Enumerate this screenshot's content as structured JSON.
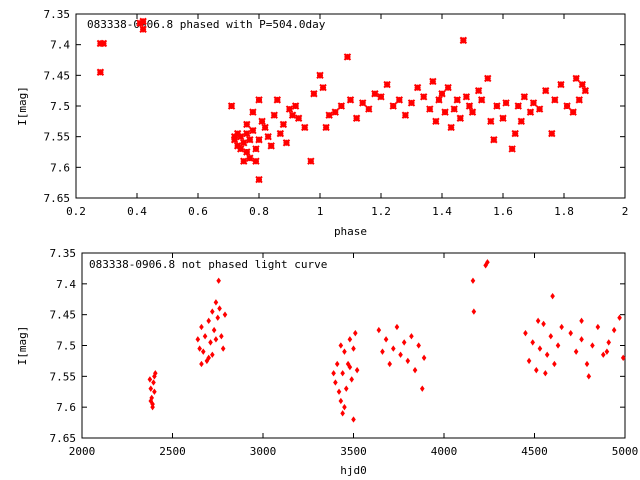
{
  "chart_data": [
    {
      "type": "scatter",
      "title": "083338-0906.8 phased with P=504.0day",
      "xlabel": "phase",
      "ylabel": "I[mag]",
      "xlim": [
        0.2,
        2.0
      ],
      "ylim": [
        7.35,
        7.65
      ],
      "y_inverted": true,
      "xticks": [
        "0.2",
        "0.4",
        "0.6",
        "0.8",
        "1",
        "1.2",
        "1.4",
        "1.6",
        "1.8",
        "2"
      ],
      "yticks": [
        "7.35",
        "7.4",
        "7.45",
        "7.5",
        "7.55",
        "7.6",
        "7.65"
      ],
      "color": "#ff0000",
      "marker": "cross",
      "points": [
        [
          0.28,
          7.398
        ],
        [
          0.29,
          7.398
        ],
        [
          0.28,
          7.445
        ],
        [
          0.41,
          7.365
        ],
        [
          0.42,
          7.362
        ],
        [
          0.42,
          7.375
        ],
        [
          0.71,
          7.5
        ],
        [
          0.72,
          7.55
        ],
        [
          0.72,
          7.555
        ],
        [
          0.73,
          7.545
        ],
        [
          0.73,
          7.565
        ],
        [
          0.74,
          7.55
        ],
        [
          0.74,
          7.57
        ],
        [
          0.75,
          7.59
        ],
        [
          0.75,
          7.56
        ],
        [
          0.76,
          7.545
        ],
        [
          0.76,
          7.53
        ],
        [
          0.76,
          7.575
        ],
        [
          0.77,
          7.585
        ],
        [
          0.77,
          7.555
        ],
        [
          0.78,
          7.54
        ],
        [
          0.78,
          7.51
        ],
        [
          0.79,
          7.57
        ],
        [
          0.79,
          7.59
        ],
        [
          0.8,
          7.62
        ],
        [
          0.8,
          7.555
        ],
        [
          0.8,
          7.49
        ],
        [
          0.81,
          7.525
        ],
        [
          0.82,
          7.535
        ],
        [
          0.83,
          7.55
        ],
        [
          0.84,
          7.565
        ],
        [
          0.85,
          7.515
        ],
        [
          0.86,
          7.49
        ],
        [
          0.87,
          7.545
        ],
        [
          0.88,
          7.53
        ],
        [
          0.89,
          7.56
        ],
        [
          0.9,
          7.505
        ],
        [
          0.91,
          7.515
        ],
        [
          0.92,
          7.5
        ],
        [
          0.93,
          7.52
        ],
        [
          0.95,
          7.535
        ],
        [
          0.97,
          7.59
        ],
        [
          0.98,
          7.48
        ],
        [
          1.0,
          7.45
        ],
        [
          1.01,
          7.47
        ],
        [
          1.02,
          7.535
        ],
        [
          1.03,
          7.515
        ],
        [
          1.05,
          7.51
        ],
        [
          1.07,
          7.5
        ],
        [
          1.09,
          7.42
        ],
        [
          1.1,
          7.49
        ],
        [
          1.12,
          7.52
        ],
        [
          1.14,
          7.495
        ],
        [
          1.16,
          7.505
        ],
        [
          1.18,
          7.48
        ],
        [
          1.2,
          7.485
        ],
        [
          1.22,
          7.465
        ],
        [
          1.24,
          7.5
        ],
        [
          1.26,
          7.49
        ],
        [
          1.28,
          7.515
        ],
        [
          1.3,
          7.495
        ],
        [
          1.32,
          7.47
        ],
        [
          1.34,
          7.485
        ],
        [
          1.36,
          7.505
        ],
        [
          1.37,
          7.46
        ],
        [
          1.38,
          7.525
        ],
        [
          1.39,
          7.49
        ],
        [
          1.4,
          7.48
        ],
        [
          1.41,
          7.51
        ],
        [
          1.42,
          7.47
        ],
        [
          1.43,
          7.535
        ],
        [
          1.44,
          7.505
        ],
        [
          1.45,
          7.49
        ],
        [
          1.46,
          7.52
        ],
        [
          1.47,
          7.393
        ],
        [
          1.48,
          7.485
        ],
        [
          1.49,
          7.5
        ],
        [
          1.5,
          7.51
        ],
        [
          1.52,
          7.475
        ],
        [
          1.53,
          7.49
        ],
        [
          1.55,
          7.455
        ],
        [
          1.56,
          7.525
        ],
        [
          1.57,
          7.555
        ],
        [
          1.58,
          7.5
        ],
        [
          1.6,
          7.52
        ],
        [
          1.61,
          7.495
        ],
        [
          1.63,
          7.57
        ],
        [
          1.64,
          7.545
        ],
        [
          1.65,
          7.5
        ],
        [
          1.66,
          7.525
        ],
        [
          1.67,
          7.485
        ],
        [
          1.69,
          7.51
        ],
        [
          1.7,
          7.495
        ],
        [
          1.72,
          7.505
        ],
        [
          1.74,
          7.475
        ],
        [
          1.76,
          7.545
        ],
        [
          1.77,
          7.49
        ],
        [
          1.79,
          7.465
        ],
        [
          1.81,
          7.5
        ],
        [
          1.83,
          7.51
        ],
        [
          1.84,
          7.455
        ],
        [
          1.85,
          7.49
        ],
        [
          1.86,
          7.465
        ],
        [
          1.87,
          7.475
        ]
      ]
    },
    {
      "type": "scatter",
      "title": "083338-0906.8 not phased light curve",
      "xlabel": "hjd0",
      "ylabel": "I[mag]",
      "xlim": [
        2000,
        5000
      ],
      "ylim": [
        7.35,
        7.65
      ],
      "y_inverted": true,
      "xticks": [
        "2000",
        "2500",
        "3000",
        "3500",
        "4000",
        "4500",
        "5000"
      ],
      "yticks": [
        "7.35",
        "7.4",
        "7.45",
        "7.5",
        "7.55",
        "7.6",
        "7.65"
      ],
      "color": "#ff0000",
      "marker": "diamond",
      "points": [
        [
          2375,
          7.555
        ],
        [
          2380,
          7.57
        ],
        [
          2385,
          7.585
        ],
        [
          2390,
          7.595
        ],
        [
          2395,
          7.56
        ],
        [
          2400,
          7.55
        ],
        [
          2405,
          7.545
        ],
        [
          2380,
          7.59
        ],
        [
          2390,
          7.6
        ],
        [
          2400,
          7.575
        ],
        [
          2640,
          7.49
        ],
        [
          2650,
          7.505
        ],
        [
          2660,
          7.47
        ],
        [
          2670,
          7.51
        ],
        [
          2680,
          7.485
        ],
        [
          2690,
          7.525
        ],
        [
          2700,
          7.46
        ],
        [
          2710,
          7.495
        ],
        [
          2720,
          7.445
        ],
        [
          2730,
          7.475
        ],
        [
          2740,
          7.43
        ],
        [
          2750,
          7.455
        ],
        [
          2760,
          7.44
        ],
        [
          2770,
          7.485
        ],
        [
          2780,
          7.505
        ],
        [
          2755,
          7.395
        ],
        [
          2790,
          7.45
        ],
        [
          2700,
          7.52
        ],
        [
          2660,
          7.53
        ],
        [
          2720,
          7.515
        ],
        [
          2740,
          7.49
        ],
        [
          3390,
          7.545
        ],
        [
          3400,
          7.56
        ],
        [
          3410,
          7.53
        ],
        [
          3420,
          7.575
        ],
        [
          3430,
          7.59
        ],
        [
          3440,
          7.545
        ],
        [
          3450,
          7.51
        ],
        [
          3460,
          7.57
        ],
        [
          3470,
          7.53
        ],
        [
          3480,
          7.49
        ],
        [
          3490,
          7.555
        ],
        [
          3500,
          7.505
        ],
        [
          3510,
          7.48
        ],
        [
          3520,
          7.54
        ],
        [
          3440,
          7.61
        ],
        [
          3450,
          7.6
        ],
        [
          3500,
          7.62
        ],
        [
          3430,
          7.5
        ],
        [
          3480,
          7.535
        ],
        [
          3640,
          7.475
        ],
        [
          3660,
          7.51
        ],
        [
          3680,
          7.49
        ],
        [
          3700,
          7.53
        ],
        [
          3720,
          7.505
        ],
        [
          3740,
          7.47
        ],
        [
          3760,
          7.515
        ],
        [
          3780,
          7.495
        ],
        [
          3800,
          7.525
        ],
        [
          3820,
          7.485
        ],
        [
          3840,
          7.54
        ],
        [
          3860,
          7.5
        ],
        [
          3880,
          7.57
        ],
        [
          3890,
          7.52
        ],
        [
          4160,
          7.395
        ],
        [
          4165,
          7.445
        ],
        [
          4230,
          7.37
        ],
        [
          4240,
          7.365
        ],
        [
          4450,
          7.48
        ],
        [
          4470,
          7.525
        ],
        [
          4490,
          7.495
        ],
        [
          4510,
          7.54
        ],
        [
          4530,
          7.505
        ],
        [
          4550,
          7.465
        ],
        [
          4570,
          7.515
        ],
        [
          4590,
          7.485
        ],
        [
          4610,
          7.53
        ],
        [
          4630,
          7.5
        ],
        [
          4650,
          7.47
        ],
        [
          4600,
          7.42
        ],
        [
          4560,
          7.545
        ],
        [
          4520,
          7.46
        ],
        [
          4700,
          7.48
        ],
        [
          4730,
          7.51
        ],
        [
          4760,
          7.49
        ],
        [
          4790,
          7.53
        ],
        [
          4820,
          7.5
        ],
        [
          4850,
          7.47
        ],
        [
          4880,
          7.515
        ],
        [
          4910,
          7.495
        ],
        [
          4940,
          7.475
        ],
        [
          4970,
          7.455
        ],
        [
          4990,
          7.52
        ],
        [
          4800,
          7.55
        ],
        [
          4900,
          7.51
        ],
        [
          4760,
          7.46
        ]
      ]
    }
  ]
}
